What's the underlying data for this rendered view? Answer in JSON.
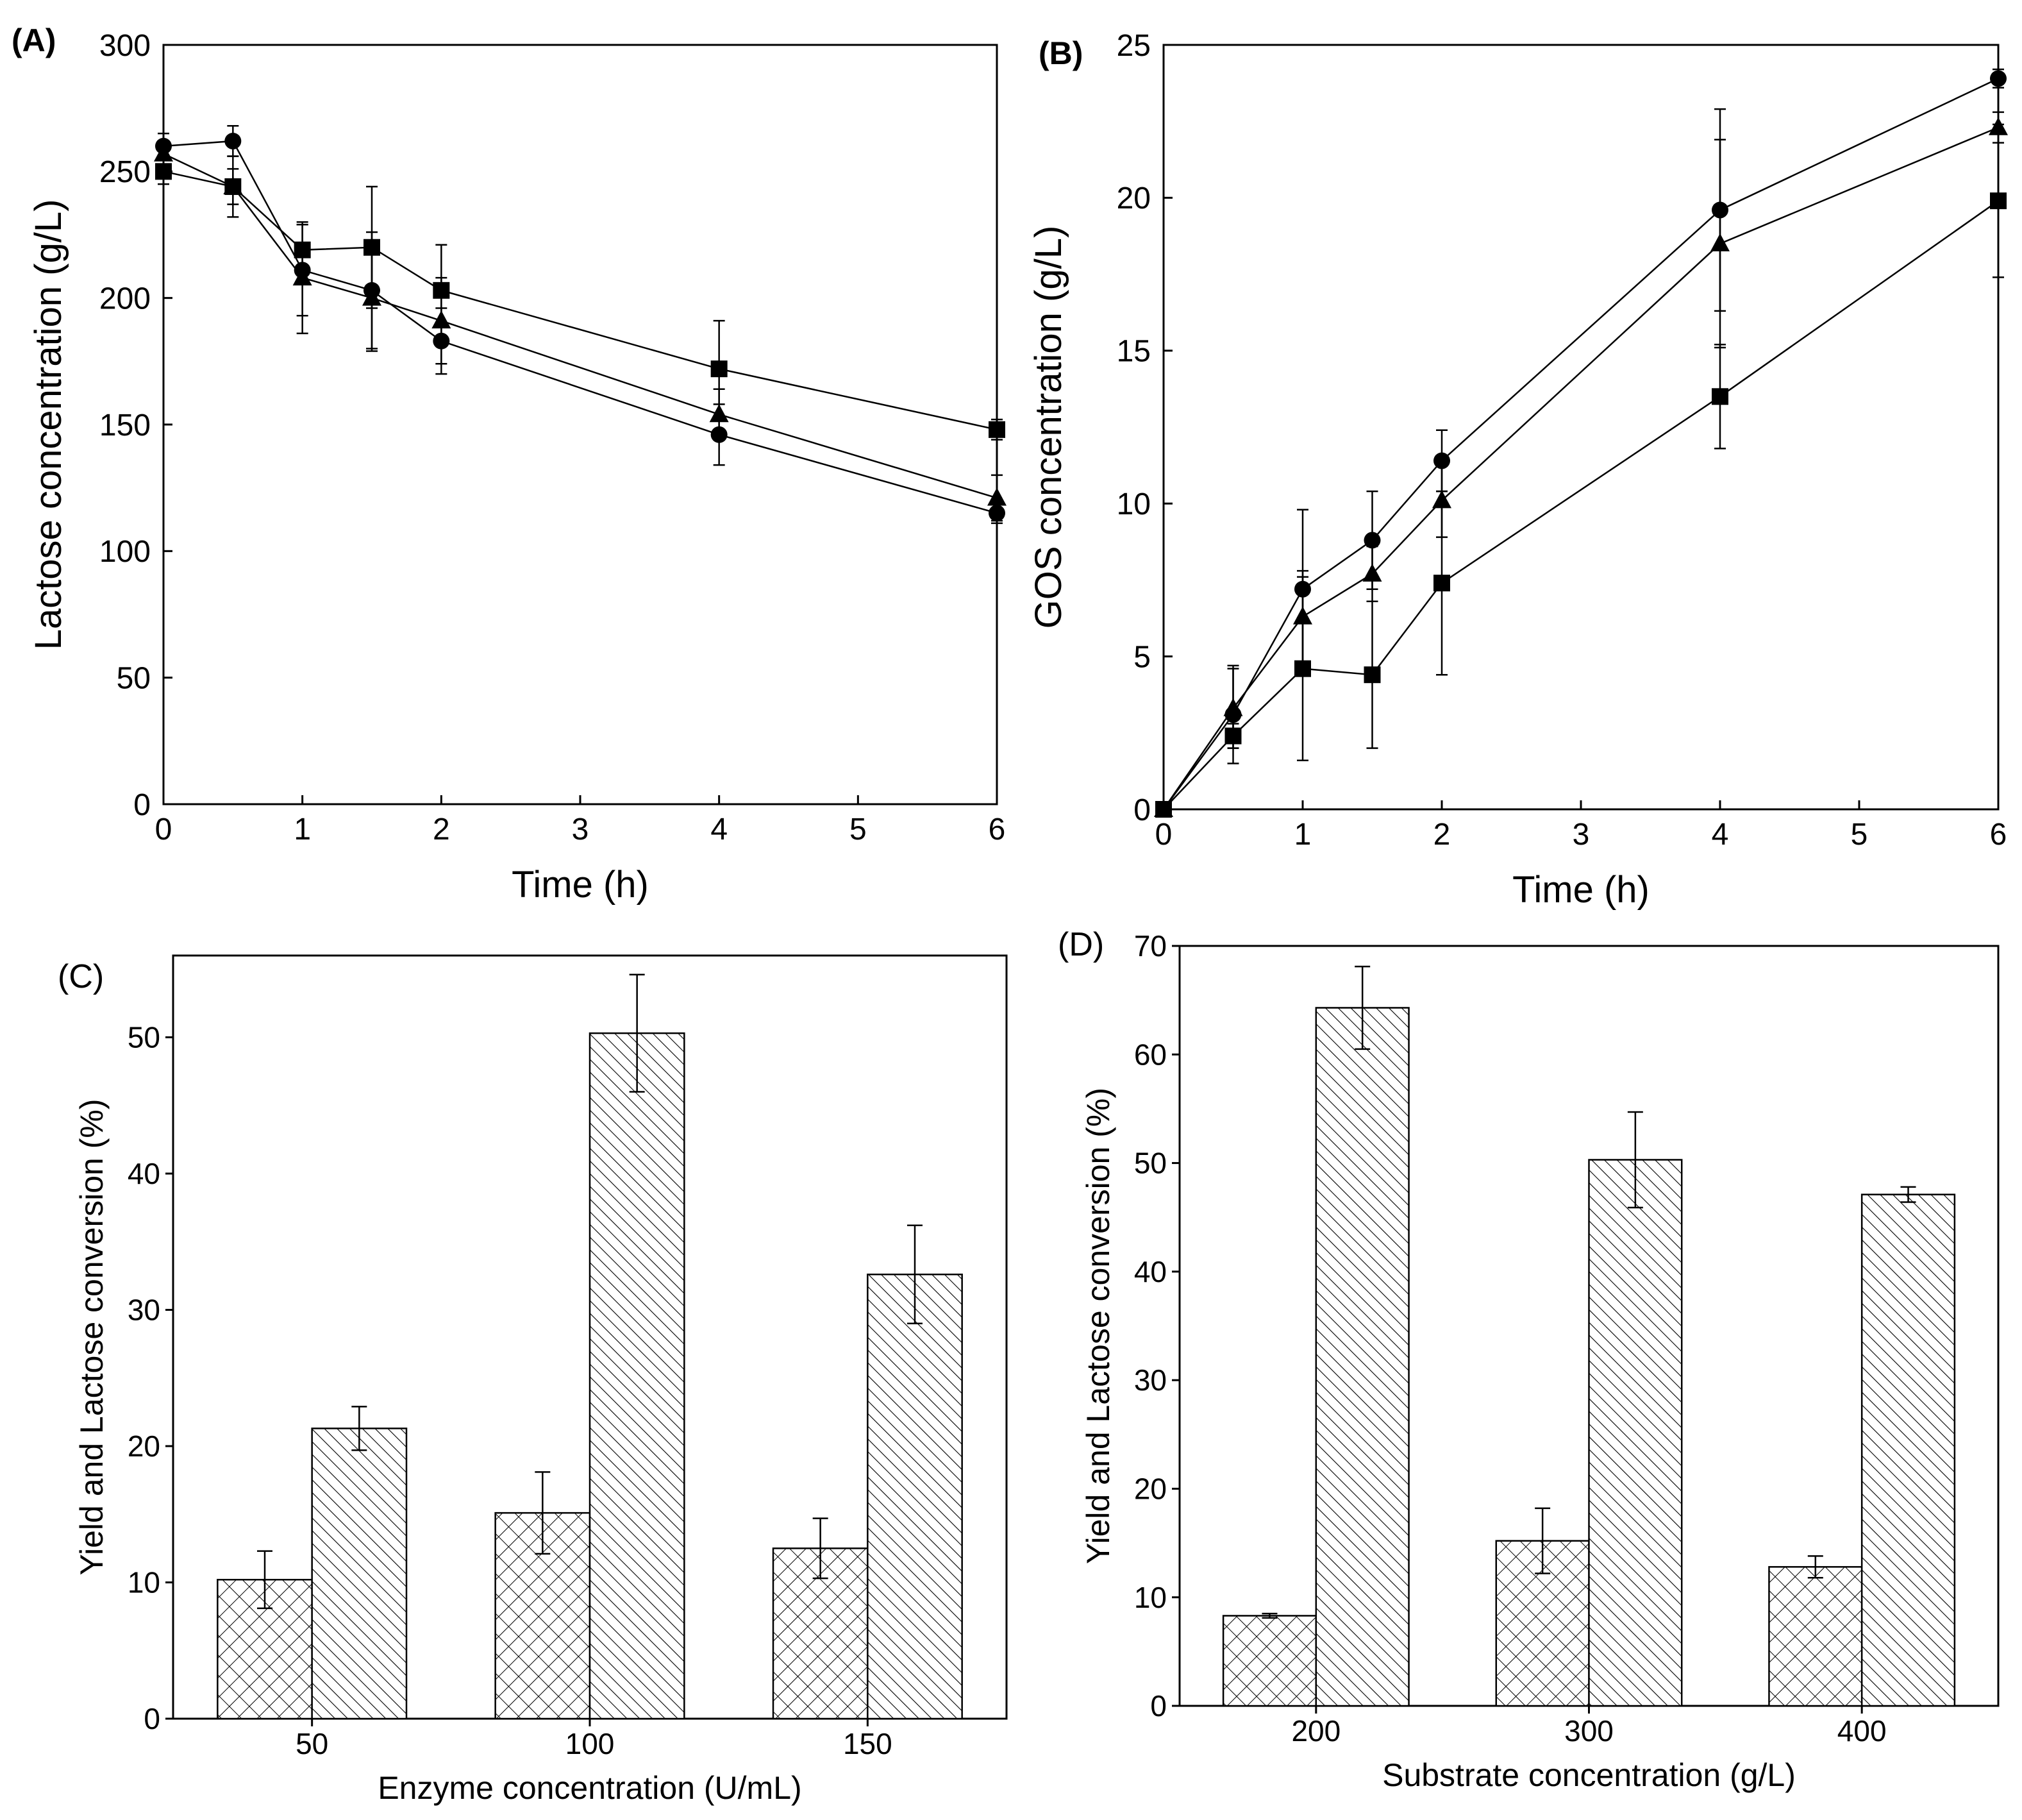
{
  "chart_data": [
    {
      "panel_label": "(A)",
      "type": "line",
      "xlabel": "Time (h)",
      "ylabel": "Lactose concentration (g/L)",
      "xlim": [
        0,
        6
      ],
      "ylim": [
        0,
        300
      ],
      "xticks": [
        "0",
        "1",
        "2",
        "3",
        "4",
        "5",
        "6"
      ],
      "yticks": [
        "0",
        "50",
        "100",
        "150",
        "200",
        "250",
        "300"
      ],
      "x": [
        0,
        0.5,
        1,
        1.5,
        2,
        4,
        6
      ],
      "series": [
        {
          "marker": "square",
          "values": [
            250,
            244,
            219,
            220,
            203,
            172,
            148
          ],
          "errors": [
            5,
            12,
            10,
            24,
            18,
            19,
            4
          ]
        },
        {
          "marker": "circle",
          "values": [
            260,
            262,
            211,
            203,
            183,
            146,
            115
          ],
          "errors": [
            5,
            6,
            18,
            23,
            13,
            12,
            4
          ]
        },
        {
          "marker": "triangle",
          "values": [
            257,
            244,
            208,
            200,
            191,
            154,
            121
          ],
          "errors": [
            5,
            7,
            22,
            21,
            17,
            10,
            9
          ]
        }
      ]
    },
    {
      "panel_label": "(B)",
      "type": "line",
      "xlabel": "Time (h)",
      "ylabel": "GOS concentration (g/L)",
      "xlim": [
        0,
        6
      ],
      "ylim": [
        0,
        25
      ],
      "xticks": [
        "0",
        "1",
        "2",
        "3",
        "4",
        "5",
        "6"
      ],
      "yticks": [
        "0",
        "5",
        "10",
        "15",
        "20",
        "25"
      ],
      "x": [
        0,
        0.5,
        1,
        1.5,
        2,
        4,
        6
      ],
      "series": [
        {
          "marker": "square",
          "values": [
            0,
            2.4,
            4.6,
            4.4,
            7.4,
            13.5,
            19.9
          ],
          "errors": [
            0,
            0.4,
            3.0,
            2.4,
            3.0,
            1.7,
            2.5
          ]
        },
        {
          "marker": "circle",
          "values": [
            0,
            3.1,
            7.2,
            8.8,
            11.4,
            19.6,
            23.9
          ],
          "errors": [
            0,
            1.6,
            2.6,
            1.6,
            1.0,
            3.3,
            0.3
          ]
        },
        {
          "marker": "triangle",
          "values": [
            0,
            3.3,
            6.3,
            7.7,
            10.1,
            18.5,
            22.3
          ],
          "errors": [
            0,
            1.3,
            1.5,
            0.9,
            1.2,
            3.4,
            0.5
          ]
        }
      ]
    },
    {
      "panel_label": "(C)",
      "type": "bar",
      "xlabel": "Enzyme concentration (U/mL)",
      "ylabel": "Yield and Lactose conversion (%)",
      "ylim": [
        0,
        56
      ],
      "yticks": [
        "0",
        "10",
        "20",
        "30",
        "40",
        "50"
      ],
      "categories": [
        "50",
        "100",
        "150"
      ],
      "series": [
        {
          "pattern": "crosshatch",
          "values": [
            10.2,
            15.1,
            12.5
          ],
          "errors": [
            2.1,
            3.0,
            2.2
          ]
        },
        {
          "pattern": "diagonal",
          "values": [
            21.3,
            50.3,
            32.6
          ],
          "errors": [
            1.6,
            4.3,
            3.6
          ]
        }
      ]
    },
    {
      "panel_label": "(D)",
      "type": "bar",
      "xlabel": "Substrate concentration (g/L)",
      "ylabel": "Yield and Lactose conversion (%)",
      "ylim": [
        0,
        70
      ],
      "yticks": [
        "0",
        "10",
        "20",
        "30",
        "40",
        "50",
        "60",
        "70"
      ],
      "categories": [
        "200",
        "300",
        "400"
      ],
      "series": [
        {
          "pattern": "crosshatch",
          "values": [
            8.3,
            15.2,
            12.8
          ],
          "errors": [
            0.2,
            3.0,
            1.0
          ]
        },
        {
          "pattern": "diagonal",
          "values": [
            64.3,
            50.3,
            47.1
          ],
          "errors": [
            3.8,
            4.4,
            0.7
          ]
        }
      ]
    }
  ]
}
